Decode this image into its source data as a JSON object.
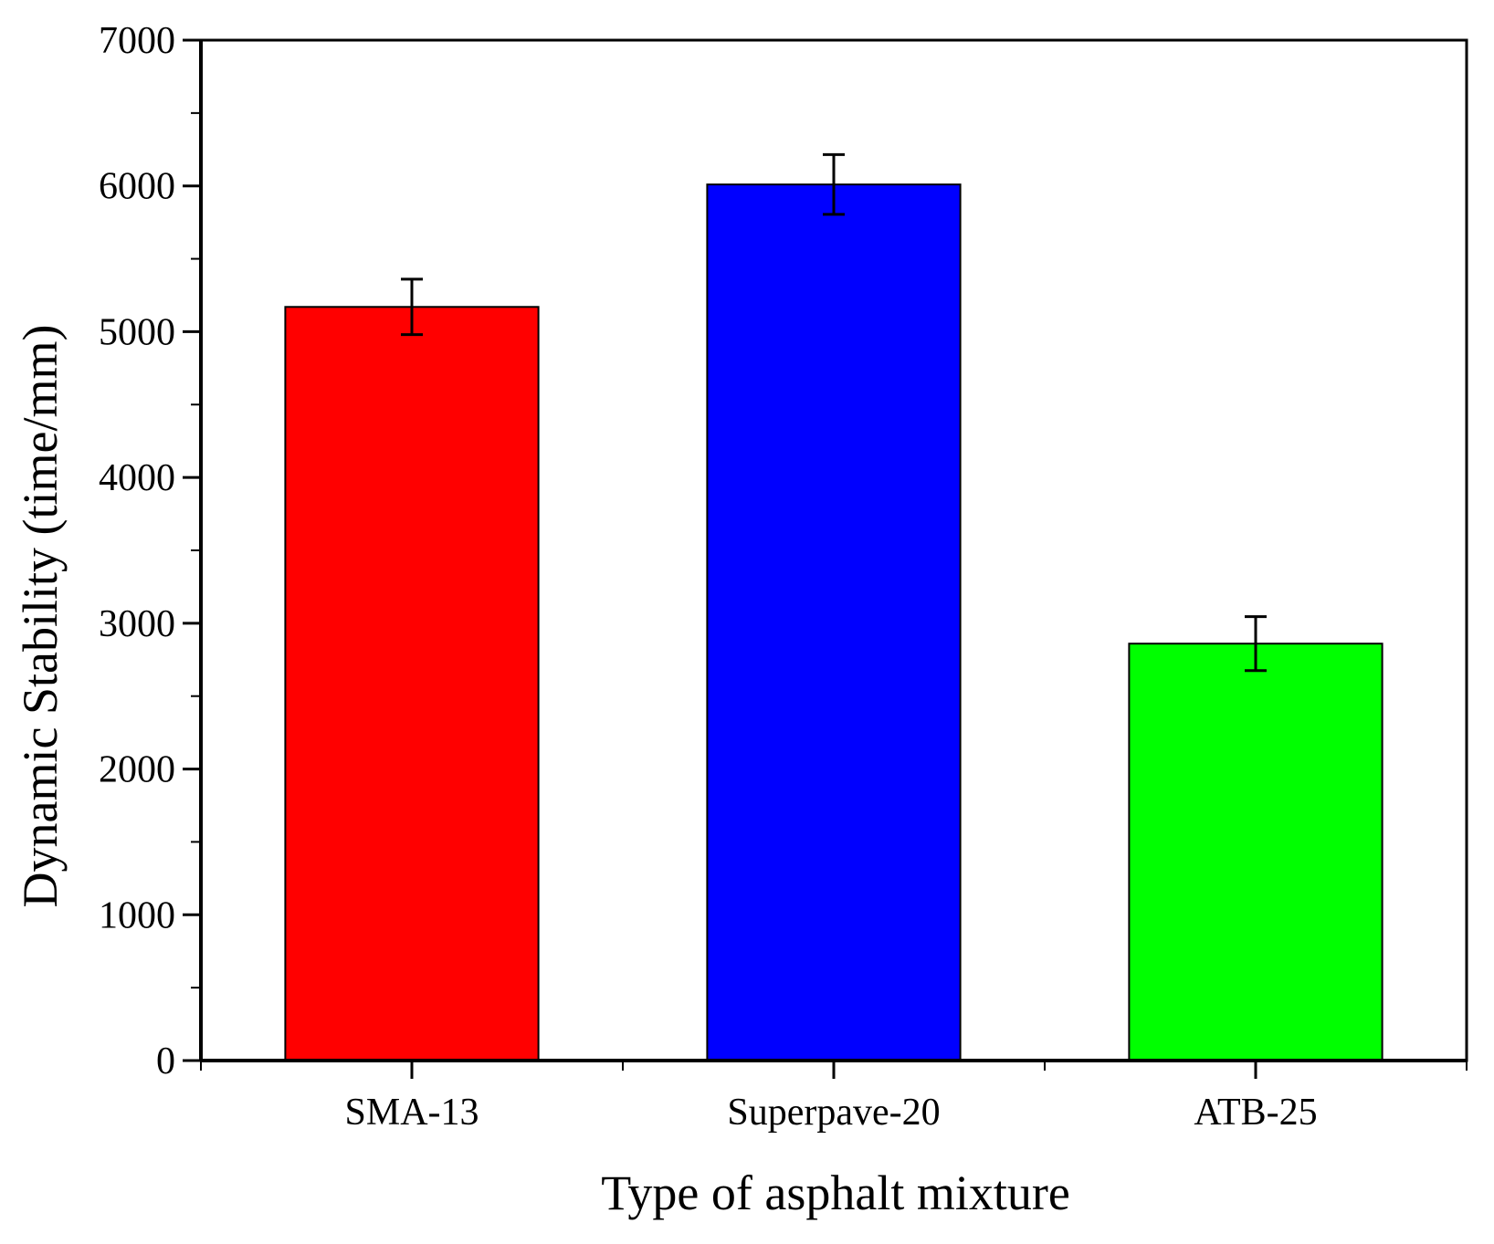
{
  "chart_data": {
    "type": "bar",
    "title": "",
    "xlabel": "Type of asphalt mixture",
    "ylabel": "Dynamic Stability (time/mm)",
    "categories": [
      "SMA-13",
      "Superpave-20",
      "ATB-25"
    ],
    "values": [
      5170,
      6010,
      2860
    ],
    "errors": [
      190,
      205,
      185
    ],
    "colors": [
      "#ff0000",
      "#0000ff",
      "#00ff00"
    ],
    "ylim": [
      0,
      7000
    ],
    "yticks": [
      "0",
      "1000",
      "2000",
      "3000",
      "4000",
      "5000",
      "6000",
      "7000"
    ],
    "grid": false,
    "legend": "none"
  }
}
